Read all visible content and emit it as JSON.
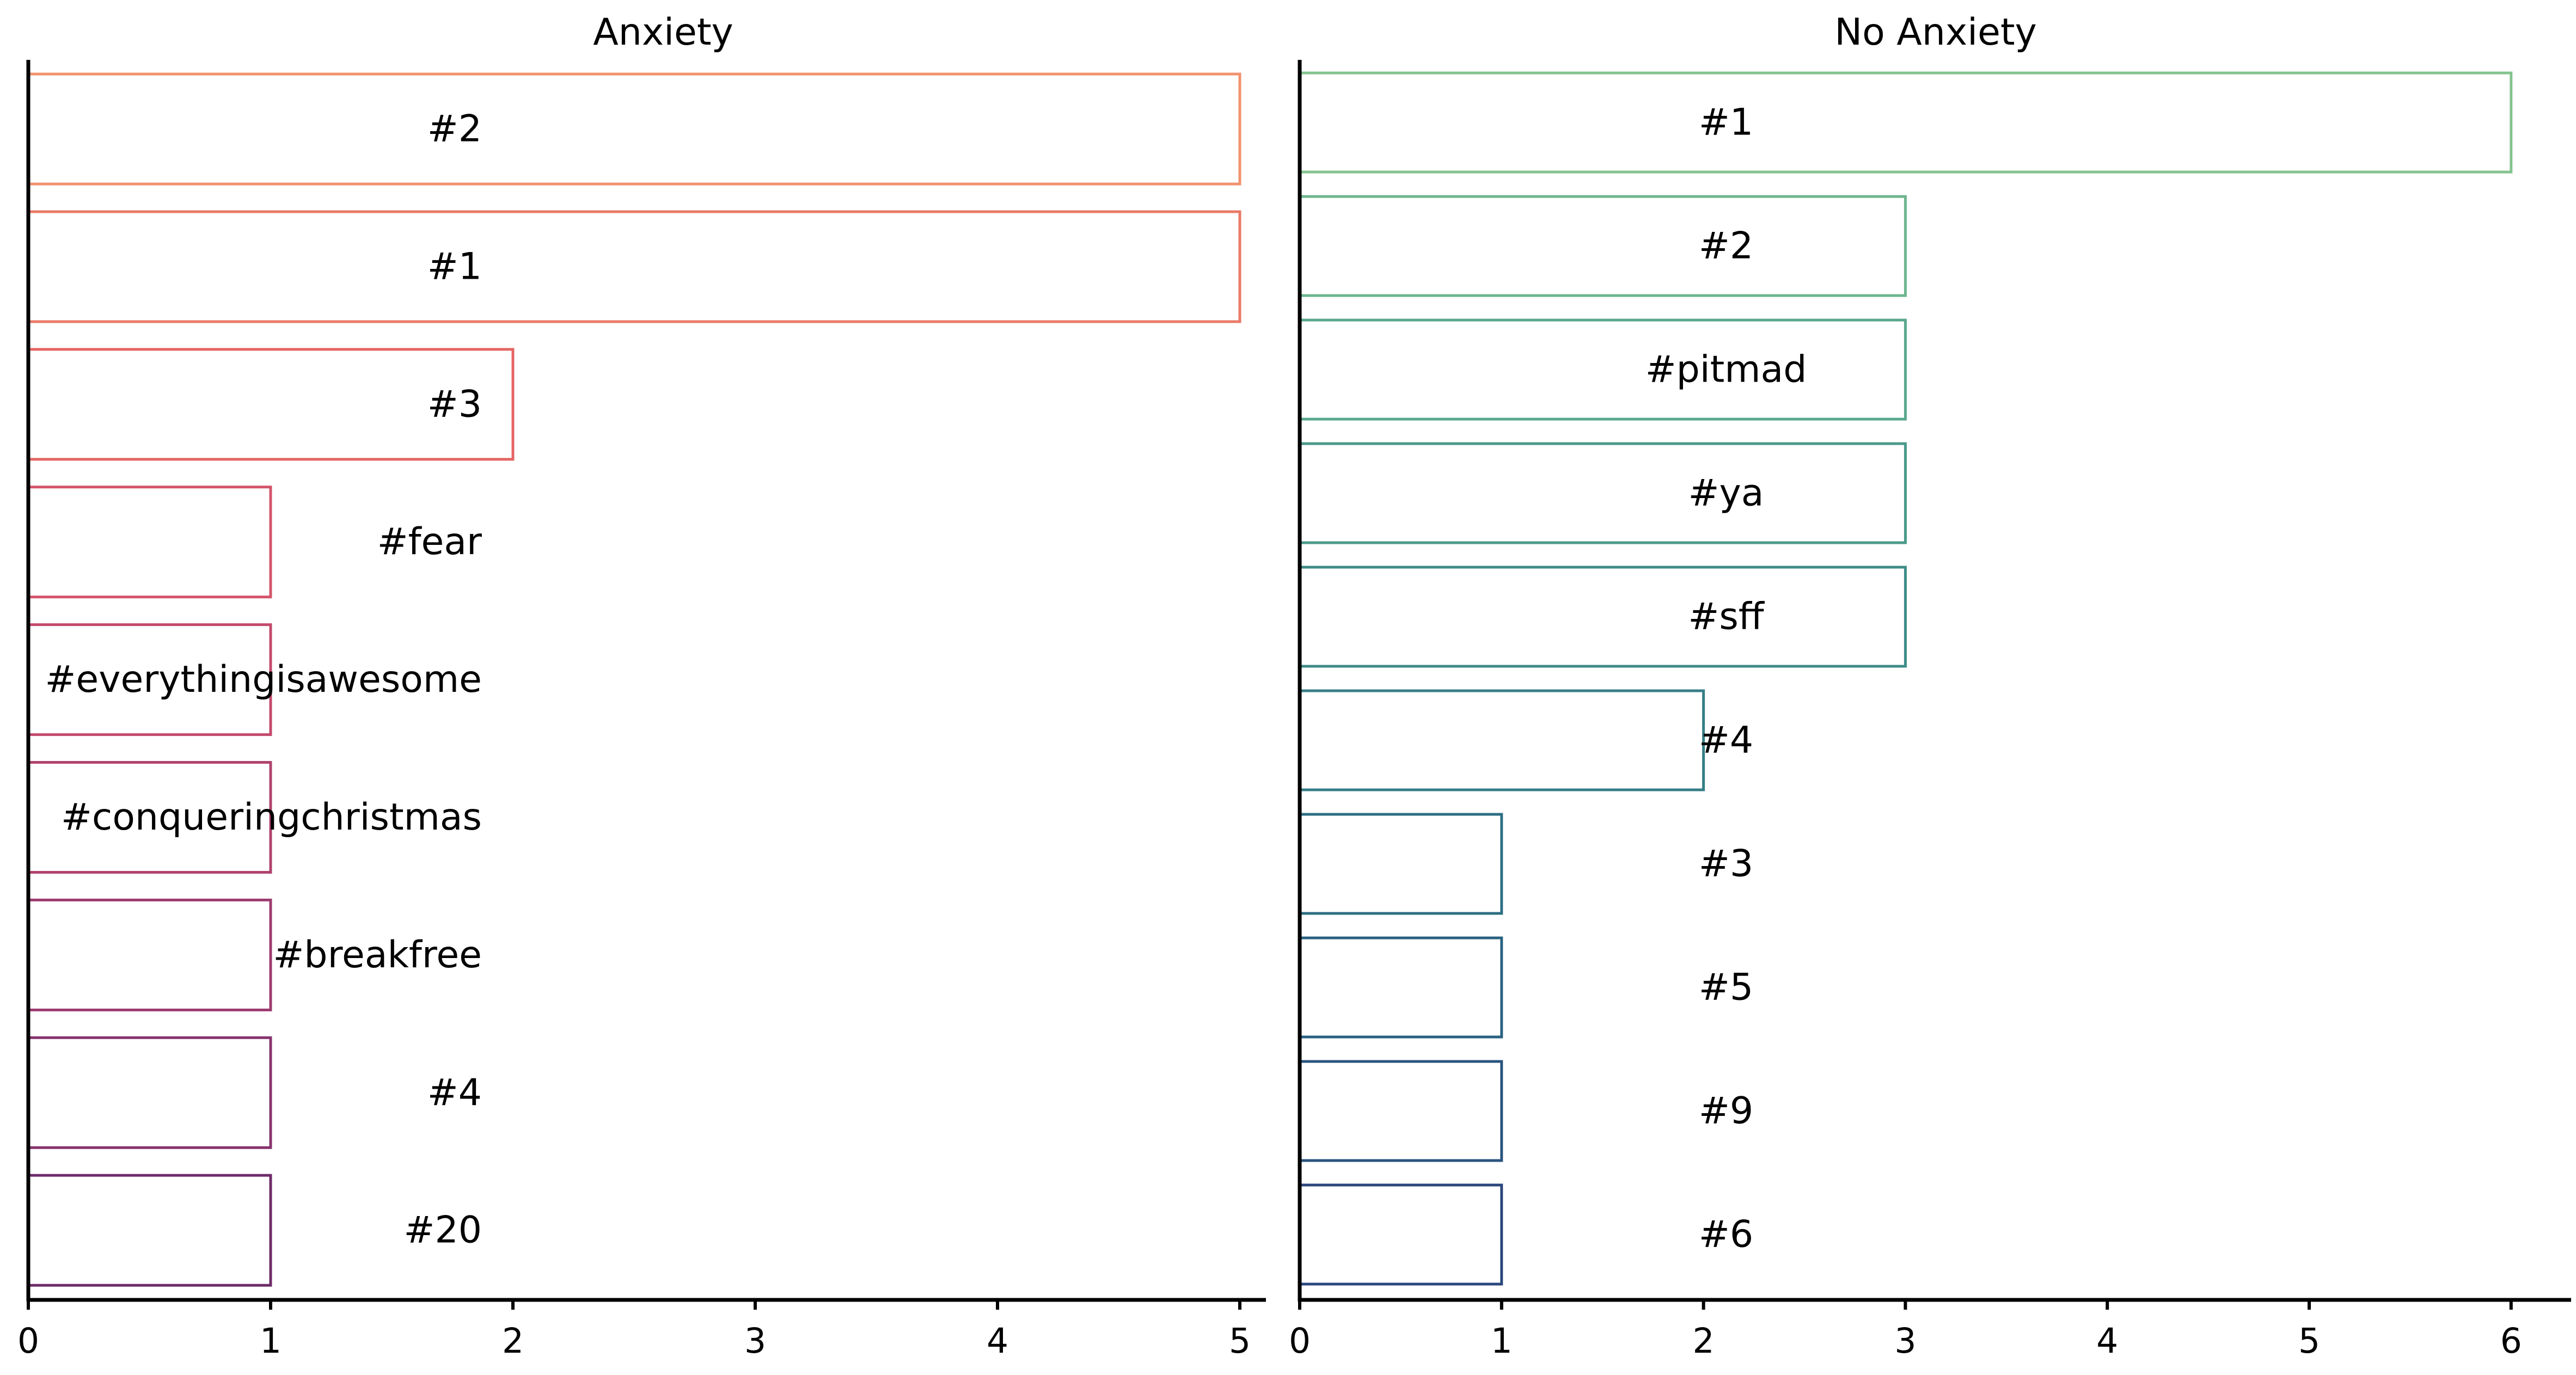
{
  "chart_data": [
    {
      "type": "bar",
      "orientation": "horizontal",
      "title": "Anxiety",
      "categories": [
        "#2",
        "#1",
        "#3",
        "#fear",
        "#everythingisawesome",
        "#conqueringchristmas",
        "#breakfree",
        "#4",
        "#20"
      ],
      "values": [
        5,
        5,
        2,
        1,
        1,
        1,
        1,
        1,
        1
      ],
      "xlim": [
        0,
        5
      ],
      "xticks": [
        "0",
        "1",
        "2",
        "3",
        "4",
        "5"
      ],
      "grid": false,
      "fill": "none",
      "colors": [
        "#f0926c",
        "#ea7a67",
        "#e46664",
        "#d4546a",
        "#c44a6c",
        "#b0436e",
        "#9c3b70",
        "#87346e",
        "#6f2c6a"
      ]
    },
    {
      "type": "bar",
      "orientation": "horizontal",
      "title": "No Anxiety",
      "categories": [
        "#1",
        "#2",
        "#pitmad",
        "#ya",
        "#sff",
        "#4",
        "#3",
        "#5",
        "#9",
        "#6"
      ],
      "values": [
        6,
        3,
        3,
        3,
        3,
        2,
        1,
        1,
        1,
        1
      ],
      "xlim": [
        0,
        6
      ],
      "xticks": [
        "0",
        "1",
        "2",
        "3",
        "4",
        "5",
        "6"
      ],
      "grid": false,
      "fill": "none",
      "colors": [
        "#84c38e",
        "#6db58e",
        "#5aa88c",
        "#4a9a8a",
        "#3f8c88",
        "#367e86",
        "#2e6f84",
        "#2a6282",
        "#2a5480",
        "#2b467c"
      ]
    }
  ]
}
